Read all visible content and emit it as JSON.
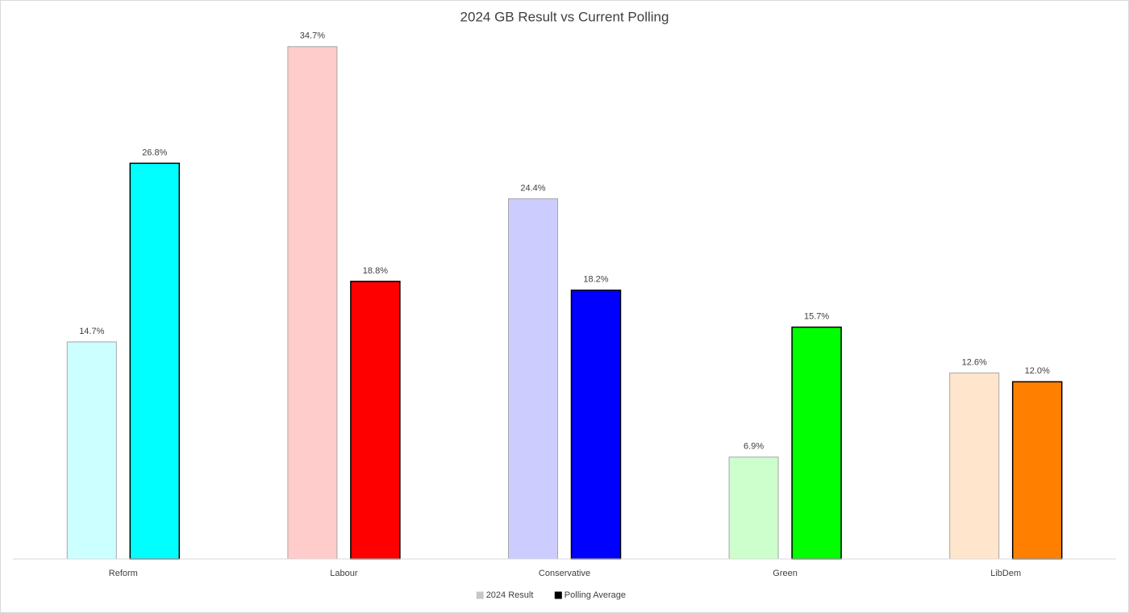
{
  "chart_data": {
    "type": "bar",
    "title": "2024 GB Result vs Current Polling",
    "categories": [
      "Reform",
      "Labour",
      "Conservative",
      "Green",
      "LibDem"
    ],
    "series": [
      {
        "name": "2024 Result",
        "color": "#c8c8c8",
        "colors": [
          "#ccffff",
          "#ffcccc",
          "#ccccff",
          "#ccffcc",
          "#ffe5cc"
        ],
        "values": [
          14.7,
          34.7,
          24.4,
          6.9,
          12.6
        ],
        "value_labels": [
          "14.7%",
          "34.7%",
          "24.4%",
          "6.9%",
          "12.6%"
        ]
      },
      {
        "name": "Polling Average",
        "color": "#000000",
        "colors": [
          "#00ffff",
          "#ff0000",
          "#0000ff",
          "#00ff00",
          "#ff8000"
        ],
        "values": [
          26.8,
          18.8,
          18.2,
          15.7,
          12.0
        ],
        "value_labels": [
          "26.8%",
          "18.8%",
          "18.2%",
          "15.7%",
          "12.0%"
        ]
      }
    ],
    "ylim": [
      0,
      36
    ],
    "legend": "bottom"
  }
}
